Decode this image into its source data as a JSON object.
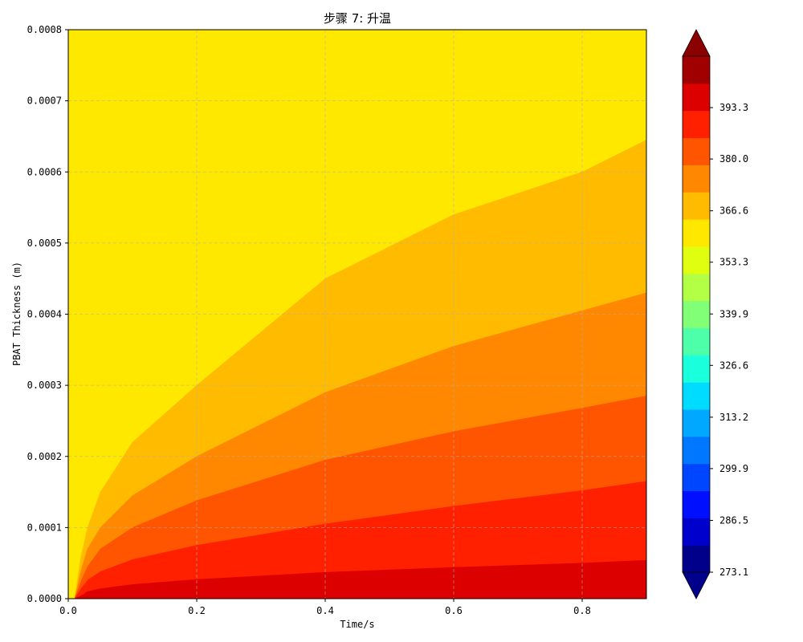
{
  "chart_data": {
    "type": "contour",
    "title": "步骤 7: 升温",
    "xlabel": "Time/s",
    "ylabel": "PBAT Thickness (m)",
    "xlim": [
      0.0,
      0.9
    ],
    "ylim": [
      0.0,
      0.0008
    ],
    "grid": true,
    "x_ticks": [
      "0.0",
      "0.2",
      "0.4",
      "0.6",
      "0.8"
    ],
    "y_ticks": [
      "0.0000",
      "0.0001",
      "0.0002",
      "0.0003",
      "0.0004",
      "0.0005",
      "0.0006",
      "0.0007",
      "0.0008"
    ],
    "contour_boundaries": [
      {
        "band_below": "#dd0000",
        "points": [
          [
            0.0,
            0.0
          ],
          [
            0.01,
            0.0
          ],
          [
            0.02,
            4e-06
          ],
          [
            0.03,
            1e-05
          ],
          [
            0.05,
            1.4e-05
          ],
          [
            0.1,
            2e-05
          ],
          [
            0.2,
            2.7e-05
          ],
          [
            0.4,
            3.7e-05
          ],
          [
            0.6,
            4.4e-05
          ],
          [
            0.8,
            5e-05
          ],
          [
            0.9,
            5.4e-05
          ]
        ]
      },
      {
        "band_below": "#ff2000",
        "points": [
          [
            0.0,
            0.0
          ],
          [
            0.01,
            0.0
          ],
          [
            0.02,
            1.4e-05
          ],
          [
            0.03,
            2.6e-05
          ],
          [
            0.05,
            3.8e-05
          ],
          [
            0.1,
            5.5e-05
          ],
          [
            0.2,
            7.5e-05
          ],
          [
            0.4,
            0.000105
          ],
          [
            0.6,
            0.00013
          ],
          [
            0.8,
            0.000152
          ],
          [
            0.9,
            0.000165
          ]
        ]
      },
      {
        "band_below": "#ff5500",
        "points": [
          [
            0.0,
            0.0
          ],
          [
            0.01,
            0.0
          ],
          [
            0.02,
            2.5e-05
          ],
          [
            0.03,
            4.5e-05
          ],
          [
            0.05,
            7e-05
          ],
          [
            0.1,
            0.0001
          ],
          [
            0.2,
            0.000138
          ],
          [
            0.4,
            0.000195
          ],
          [
            0.6,
            0.000235
          ],
          [
            0.8,
            0.000268
          ],
          [
            0.9,
            0.000285
          ]
        ]
      },
      {
        "band_below": "#ff8800",
        "points": [
          [
            0.0,
            0.0
          ],
          [
            0.01,
            0.0
          ],
          [
            0.02,
            4e-05
          ],
          [
            0.03,
            7e-05
          ],
          [
            0.05,
            0.0001
          ],
          [
            0.1,
            0.000145
          ],
          [
            0.2,
            0.0002
          ],
          [
            0.4,
            0.00029
          ],
          [
            0.6,
            0.000355
          ],
          [
            0.8,
            0.000405
          ],
          [
            0.9,
            0.00043
          ]
        ]
      },
      {
        "band_below": "#ffbb00",
        "points": [
          [
            0.0,
            0.0
          ],
          [
            0.01,
            0.0
          ],
          [
            0.02,
            6e-05
          ],
          [
            0.03,
            0.0001
          ],
          [
            0.05,
            0.00015
          ],
          [
            0.1,
            0.00022
          ],
          [
            0.2,
            0.0003
          ],
          [
            0.4,
            0.00045
          ],
          [
            0.6,
            0.00054
          ],
          [
            0.8,
            0.0006
          ],
          [
            0.9,
            0.000645
          ]
        ]
      }
    ],
    "top_band_color": "#ffe800",
    "colorbar": {
      "min": 273.1,
      "max": 406.6,
      "extend": "both",
      "under_color": "#00008b",
      "over_color": "#8b0000",
      "colors": [
        "#00008b",
        "#0000cd",
        "#0010ff",
        "#0045ff",
        "#0077ff",
        "#00a8ff",
        "#00dcff",
        "#1affdc",
        "#4dffa8",
        "#80ff77",
        "#b3ff45",
        "#e0ff10",
        "#ffe800",
        "#ffbb00",
        "#ff8800",
        "#ff5500",
        "#ff2000",
        "#dd0000",
        "#a00000"
      ],
      "tick_labels": [
        "273.1",
        "286.5",
        "299.9",
        "313.2",
        "326.6",
        "339.9",
        "353.3",
        "366.6",
        "380.0",
        "393.3"
      ]
    }
  }
}
